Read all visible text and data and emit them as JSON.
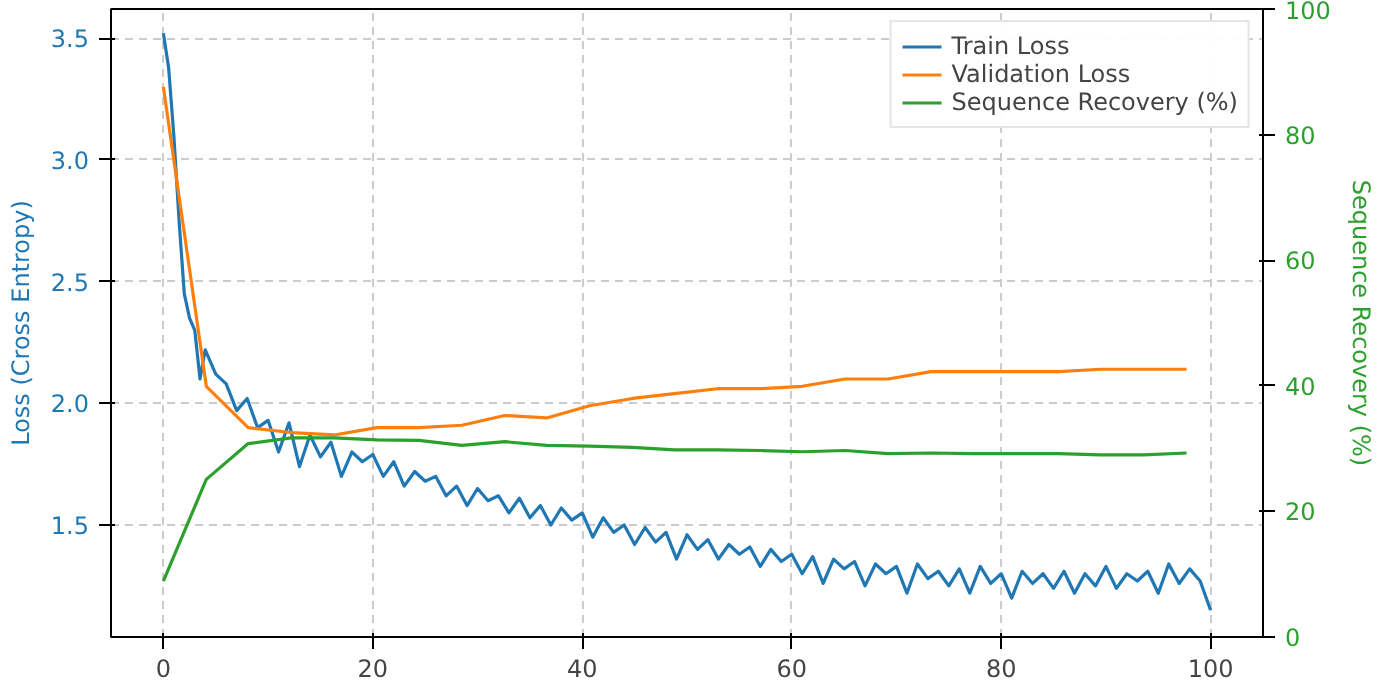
{
  "chart_data": {
    "type": "line",
    "xlim": [
      -5,
      105
    ],
    "ylim": [
      1.04,
      3.62
    ],
    "y2lim": [
      0,
      100
    ],
    "xticks": [
      0,
      20,
      40,
      60,
      80,
      100
    ],
    "yticks": [
      1.5,
      {
        "value": 2,
        "label": "2.0"
      },
      2.5,
      {
        "value": 3,
        "label": "3.0"
      },
      3.5
    ],
    "y2ticks": [
      0,
      20,
      40,
      60,
      80,
      100
    ],
    "ylabel": "Loss (Cross Entropy)",
    "y2label": "Sequence Recovery (%)",
    "grid": true,
    "legend": "top right",
    "line_style": "solid",
    "series": [
      {
        "name": "Train Loss",
        "color": "#1f77b4",
        "x": [
          0,
          0.5,
          1,
          1.5,
          2,
          2.5,
          3,
          3.5,
          4,
          5,
          6,
          7,
          8,
          9,
          10,
          11,
          12,
          13,
          14,
          15,
          16,
          17,
          18,
          19,
          20,
          21,
          22,
          23,
          24,
          25,
          26,
          27,
          28,
          29,
          30,
          31,
          32,
          33,
          34,
          35,
          36,
          37,
          38,
          39,
          40,
          41,
          42,
          43,
          44,
          45,
          46,
          47,
          48,
          49,
          50,
          51,
          52,
          53,
          54,
          55,
          56,
          57,
          58,
          59,
          60,
          61,
          62,
          63,
          64,
          65,
          66,
          67,
          68,
          69,
          70,
          71,
          72,
          73,
          74,
          75,
          76,
          77,
          78,
          79,
          80,
          81,
          82,
          83,
          84,
          85,
          86,
          87,
          88,
          89,
          90,
          91,
          92,
          93,
          94,
          95,
          96,
          97,
          98,
          99,
          100
        ],
        "values": [
          3.52,
          3.38,
          3.1,
          2.75,
          2.45,
          2.35,
          2.3,
          2.1,
          2.22,
          2.12,
          2.08,
          1.97,
          2.02,
          1.9,
          1.93,
          1.8,
          1.92,
          1.74,
          1.87,
          1.78,
          1.84,
          1.7,
          1.8,
          1.76,
          1.79,
          1.7,
          1.76,
          1.66,
          1.72,
          1.68,
          1.7,
          1.62,
          1.66,
          1.58,
          1.65,
          1.6,
          1.62,
          1.55,
          1.61,
          1.53,
          1.58,
          1.5,
          1.57,
          1.52,
          1.55,
          1.45,
          1.53,
          1.47,
          1.5,
          1.42,
          1.49,
          1.43,
          1.47,
          1.36,
          1.46,
          1.4,
          1.44,
          1.36,
          1.42,
          1.38,
          1.41,
          1.33,
          1.4,
          1.35,
          1.38,
          1.3,
          1.37,
          1.26,
          1.36,
          1.32,
          1.35,
          1.25,
          1.34,
          1.3,
          1.33,
          1.22,
          1.34,
          1.28,
          1.31,
          1.25,
          1.32,
          1.22,
          1.33,
          1.26,
          1.3,
          1.2,
          1.31,
          1.26,
          1.3,
          1.24,
          1.31,
          1.22,
          1.3,
          1.25,
          1.33,
          1.24,
          1.3,
          1.27,
          1.31,
          1.22,
          1.34,
          1.26,
          1.32,
          1.27,
          1.15
        ]
      },
      {
        "name": "Validation Loss",
        "color": "#ff7f0e",
        "x": [
          0,
          4.1,
          8.1,
          12.2,
          16.3,
          20.4,
          24.4,
          28.5,
          32.6,
          36.6,
          40.7,
          44.8,
          48.8,
          52.9,
          57,
          61,
          65.1,
          69.2,
          73.3,
          77.3,
          81.4,
          85.5,
          89.5,
          93.6,
          97.7
        ],
        "values": [
          3.3,
          2.07,
          1.9,
          1.88,
          1.87,
          1.9,
          1.9,
          1.91,
          1.95,
          1.94,
          1.99,
          2.02,
          2.04,
          2.06,
          2.06,
          2.07,
          2.1,
          2.1,
          2.13,
          2.13,
          2.13,
          2.13,
          2.14,
          2.14,
          2.14
        ]
      },
      {
        "name": "Sequence Recovery (%)",
        "color": "#2ca02c",
        "axis": "y2",
        "x": [
          0,
          4.1,
          8.1,
          12.2,
          16.3,
          20.4,
          24.4,
          28.5,
          32.6,
          36.6,
          40.7,
          44.8,
          48.8,
          52.9,
          57,
          61,
          65.1,
          69.2,
          73.3,
          77.3,
          81.4,
          85.5,
          89.5,
          93.6,
          97.7
        ],
        "values": [
          8.9,
          25.1,
          30.8,
          31.7,
          31.7,
          31.4,
          31.3,
          30.5,
          31.1,
          30.5,
          30.4,
          30.2,
          29.8,
          29.8,
          29.7,
          29.5,
          29.7,
          29.2,
          29.3,
          29.2,
          29.2,
          29.2,
          29.0,
          29.0,
          29.3
        ]
      }
    ]
  }
}
